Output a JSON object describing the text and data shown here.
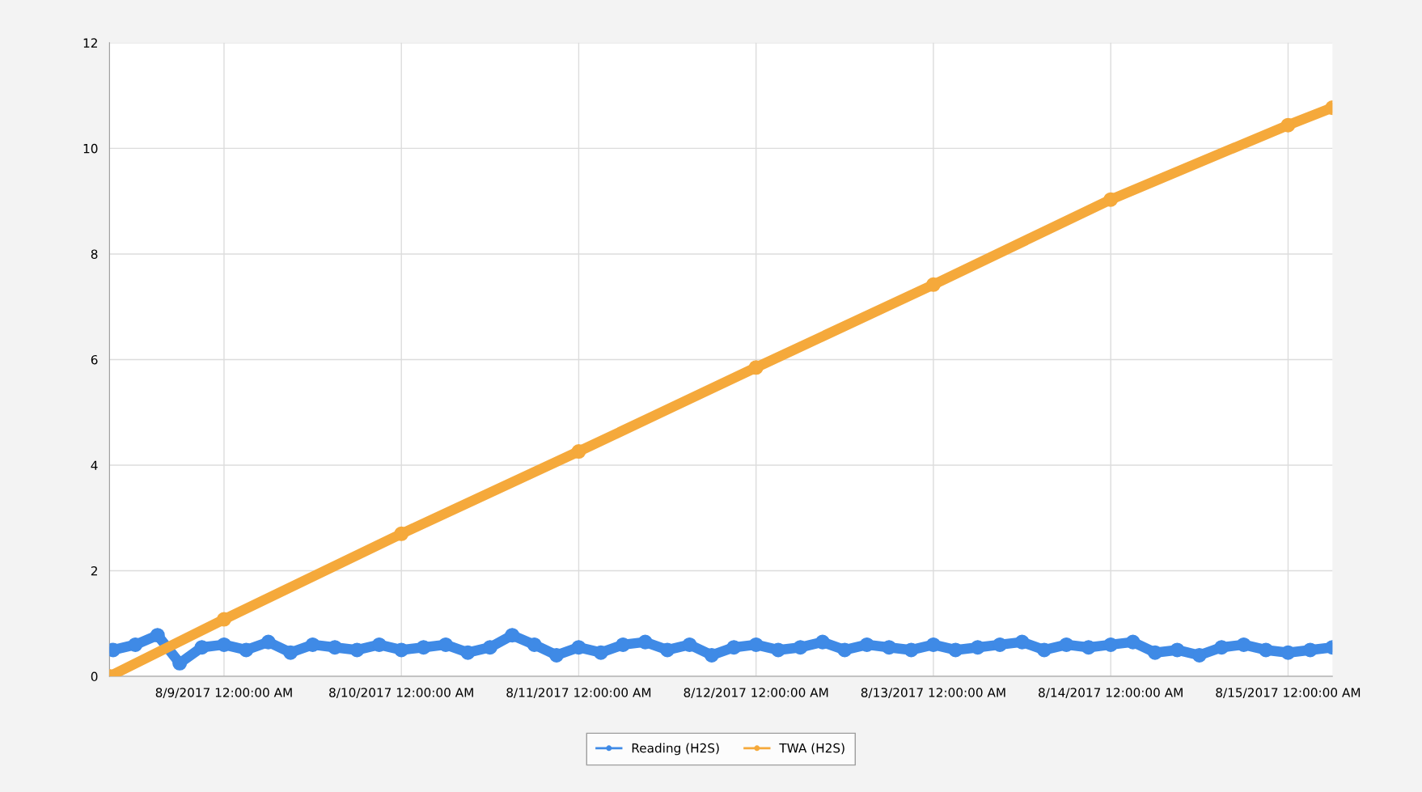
{
  "chart_data": {
    "type": "line",
    "xlim": [
      "2017-08-08T08:30",
      "2017-08-15T06:00"
    ],
    "xticks": [
      {
        "value": "2017-08-09",
        "label": "8/9/2017 12:00:00 AM"
      },
      {
        "value": "2017-08-10",
        "label": "8/10/2017 12:00:00 AM"
      },
      {
        "value": "2017-08-11",
        "label": "8/11/2017 12:00:00 AM"
      },
      {
        "value": "2017-08-12",
        "label": "8/12/2017 12:00:00 AM"
      },
      {
        "value": "2017-08-13",
        "label": "8/13/2017 12:00:00 AM"
      },
      {
        "value": "2017-08-14",
        "label": "8/14/2017 12:00:00 AM"
      },
      {
        "value": "2017-08-15",
        "label": "8/15/2017 12:00:00 AM"
      }
    ],
    "ylim": [
      0,
      12
    ],
    "yticks": [
      0,
      2,
      4,
      6,
      8,
      10,
      12
    ],
    "grid": true,
    "legend": "bottom",
    "marker": "circle",
    "line_style": "solid",
    "series": [
      {
        "name": "Reading (H2S)",
        "color": "#3f8ae6",
        "x": [
          "2017-08-08T09:00",
          "2017-08-08T12:00",
          "2017-08-08T15:00",
          "2017-08-08T18:00",
          "2017-08-08T21:00",
          "2017-08-09T00:00",
          "2017-08-09T03:00",
          "2017-08-09T06:00",
          "2017-08-09T09:00",
          "2017-08-09T12:00",
          "2017-08-09T15:00",
          "2017-08-09T18:00",
          "2017-08-09T21:00",
          "2017-08-10T00:00",
          "2017-08-10T03:00",
          "2017-08-10T06:00",
          "2017-08-10T09:00",
          "2017-08-10T12:00",
          "2017-08-10T15:00",
          "2017-08-10T18:00",
          "2017-08-10T21:00",
          "2017-08-11T00:00",
          "2017-08-11T03:00",
          "2017-08-11T06:00",
          "2017-08-11T09:00",
          "2017-08-11T12:00",
          "2017-08-11T15:00",
          "2017-08-11T18:00",
          "2017-08-11T21:00",
          "2017-08-12T00:00",
          "2017-08-12T03:00",
          "2017-08-12T06:00",
          "2017-08-12T09:00",
          "2017-08-12T12:00",
          "2017-08-12T15:00",
          "2017-08-12T18:00",
          "2017-08-12T21:00",
          "2017-08-13T00:00",
          "2017-08-13T03:00",
          "2017-08-13T06:00",
          "2017-08-13T09:00",
          "2017-08-13T12:00",
          "2017-08-13T15:00",
          "2017-08-13T18:00",
          "2017-08-13T21:00",
          "2017-08-14T00:00",
          "2017-08-14T03:00",
          "2017-08-14T06:00",
          "2017-08-14T09:00",
          "2017-08-14T12:00",
          "2017-08-14T15:00",
          "2017-08-14T18:00",
          "2017-08-14T21:00",
          "2017-08-15T00:00",
          "2017-08-15T03:00",
          "2017-08-15T06:00"
        ],
        "values": [
          0.5,
          0.6,
          0.78,
          0.25,
          0.55,
          0.6,
          0.5,
          0.65,
          0.45,
          0.6,
          0.55,
          0.5,
          0.6,
          0.5,
          0.55,
          0.6,
          0.45,
          0.55,
          0.78,
          0.6,
          0.4,
          0.55,
          0.45,
          0.6,
          0.65,
          0.5,
          0.6,
          0.4,
          0.55,
          0.6,
          0.5,
          0.55,
          0.65,
          0.5,
          0.6,
          0.55,
          0.5,
          0.6,
          0.5,
          0.55,
          0.6,
          0.65,
          0.5,
          0.6,
          0.55,
          0.6,
          0.65,
          0.45,
          0.5,
          0.4,
          0.55,
          0.6,
          0.5,
          0.45,
          0.5,
          0.55
        ]
      },
      {
        "name": "TWA (H2S)",
        "color": "#f5a93b",
        "x": [
          "2017-08-08T08:30",
          "2017-08-09T00:00",
          "2017-08-10T00:00",
          "2017-08-11T00:00",
          "2017-08-12T00:00",
          "2017-08-13T00:00",
          "2017-08-14T00:00",
          "2017-08-15T00:00",
          "2017-08-15T06:00"
        ],
        "values": [
          0,
          1.08,
          2.7,
          4.26,
          5.85,
          7.42,
          9.03,
          10.44,
          10.77
        ]
      }
    ]
  }
}
